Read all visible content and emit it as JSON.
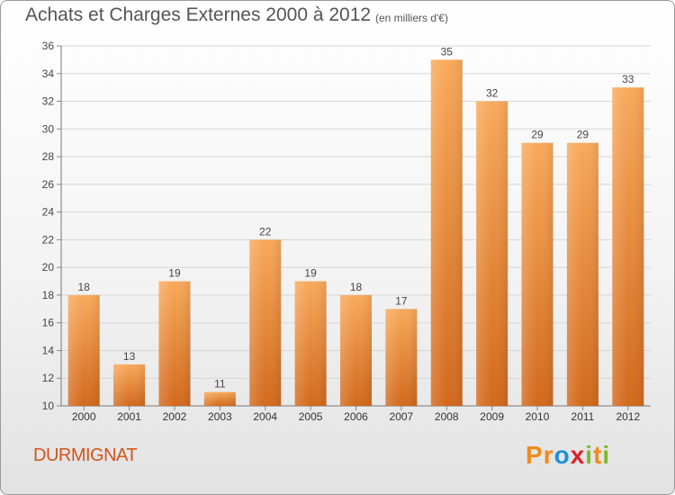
{
  "chart_data": {
    "type": "bar",
    "title": "Achats et Charges Externes 2000 à 2012",
    "subtitle": "(en milliers d'€)",
    "categories": [
      "2000",
      "2001",
      "2002",
      "2003",
      "2004",
      "2005",
      "2006",
      "2007",
      "2008",
      "2009",
      "2010",
      "2011",
      "2012"
    ],
    "values": [
      18,
      13,
      19,
      11,
      22,
      19,
      18,
      17,
      35,
      32,
      29,
      29,
      33
    ],
    "ylim": [
      10,
      36
    ],
    "yticks": [
      10,
      12,
      14,
      16,
      18,
      20,
      22,
      24,
      26,
      28,
      30,
      32,
      34,
      36
    ],
    "grid": true,
    "bar_color_top": "#f8a95a",
    "bar_color_bottom": "#d2691c"
  },
  "footer": {
    "commune": "DURMIGNAT",
    "logo_letters": [
      "P",
      "r",
      "o",
      "x",
      "i",
      "t",
      "i"
    ],
    "logo_colors": [
      "#f08a1c",
      "#f08a1c",
      "#1e90d8",
      "#d8202a",
      "#7cbb2c",
      "#f08a1c",
      "#7cbb2c"
    ]
  }
}
